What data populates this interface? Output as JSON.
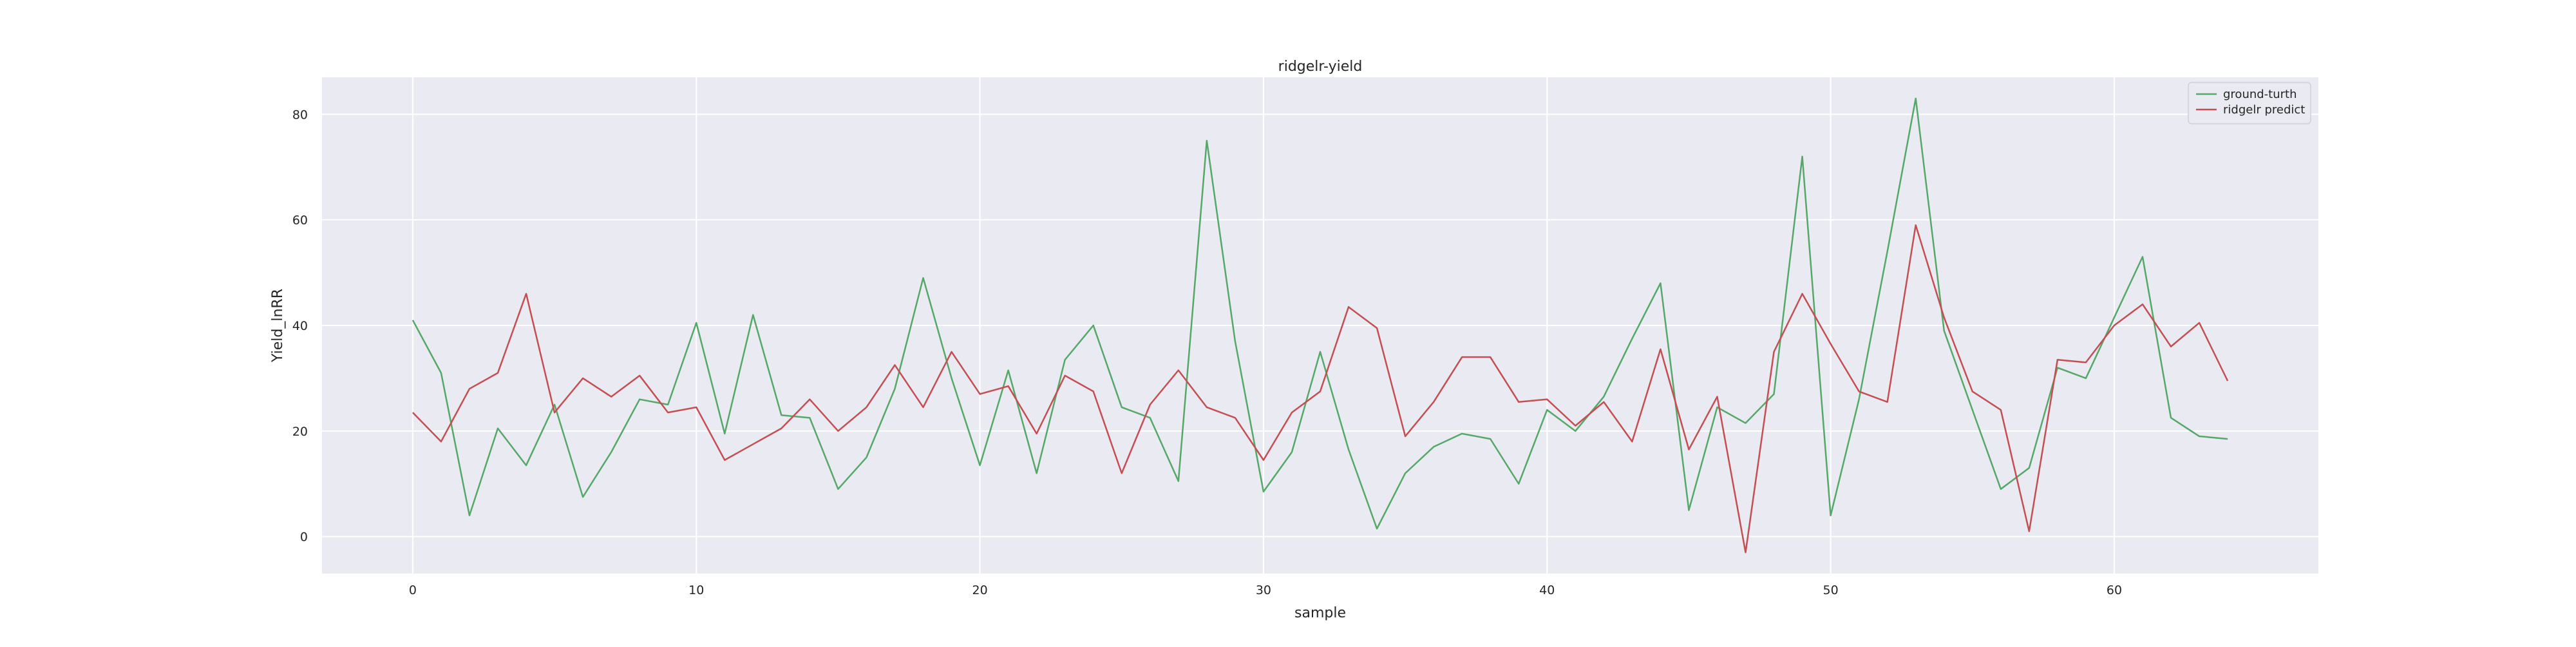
{
  "chart_data": {
    "type": "line",
    "title": "ridgelr-yield",
    "xlabel": "sample",
    "ylabel": "Yield_lnRR",
    "xlim": [
      -3.2,
      67.2
    ],
    "ylim": [
      -7,
      87
    ],
    "xticks": [
      0,
      10,
      20,
      30,
      40,
      50,
      60
    ],
    "yticks": [
      0,
      20,
      40,
      60,
      80
    ],
    "grid": true,
    "legend_position": "top-right",
    "background": "#eaeaf2",
    "x": [
      0,
      1,
      2,
      3,
      4,
      5,
      6,
      7,
      8,
      9,
      10,
      11,
      12,
      13,
      14,
      15,
      16,
      17,
      18,
      19,
      20,
      21,
      22,
      23,
      24,
      25,
      26,
      27,
      28,
      29,
      30,
      31,
      32,
      33,
      34,
      35,
      36,
      37,
      38,
      39,
      40,
      41,
      42,
      43,
      44,
      45,
      46,
      47,
      48,
      49,
      50,
      51,
      52,
      53,
      54,
      55,
      56,
      57,
      58,
      59,
      60,
      61,
      62,
      63,
      64
    ],
    "series": [
      {
        "name": "ground-turth",
        "color": "#55a868",
        "values": [
          41.0,
          31.0,
          4.0,
          20.5,
          13.5,
          25.0,
          7.5,
          16.0,
          26.0,
          25.0,
          40.5,
          19.5,
          42.0,
          23.0,
          22.5,
          9.0,
          15.0,
          28.0,
          49.0,
          30.0,
          13.5,
          31.5,
          12.0,
          33.5,
          40.0,
          24.5,
          22.5,
          10.5,
          75.0,
          37.0,
          8.5,
          16.0,
          35.0,
          16.5,
          1.5,
          12.0,
          17.0,
          19.5,
          18.5,
          10.0,
          24.0,
          20.0,
          26.5,
          37.5,
          48.0,
          5.0,
          24.5,
          21.5,
          27.0,
          72.0,
          4.0,
          26.0,
          54.0,
          83.0,
          39.0,
          24.0,
          9.0,
          13.0,
          32.0,
          30.0,
          41.5,
          53.0,
          22.5,
          19.0,
          18.5
        ]
      },
      {
        "name": "ridgelr predict",
        "color": "#c44e52",
        "values": [
          23.5,
          18.0,
          28.0,
          31.0,
          46.0,
          23.5,
          30.0,
          26.5,
          30.5,
          23.5,
          24.5,
          14.5,
          17.5,
          20.5,
          26.0,
          20.0,
          24.5,
          32.5,
          24.5,
          35.0,
          27.0,
          28.5,
          19.5,
          30.5,
          27.5,
          12.0,
          25.0,
          31.5,
          24.5,
          22.5,
          14.5,
          23.5,
          27.5,
          43.5,
          39.5,
          19.0,
          25.5,
          34.0,
          34.0,
          25.5,
          26.0,
          21.0,
          25.5,
          18.0,
          35.5,
          16.5,
          26.5,
          -3.0,
          35.0,
          46.0,
          36.5,
          27.5,
          25.5,
          59.0,
          41.5,
          27.5,
          24.0,
          1.0,
          33.5,
          33.0,
          40.0,
          44.0,
          36.0,
          40.5,
          29.5
        ]
      }
    ]
  }
}
